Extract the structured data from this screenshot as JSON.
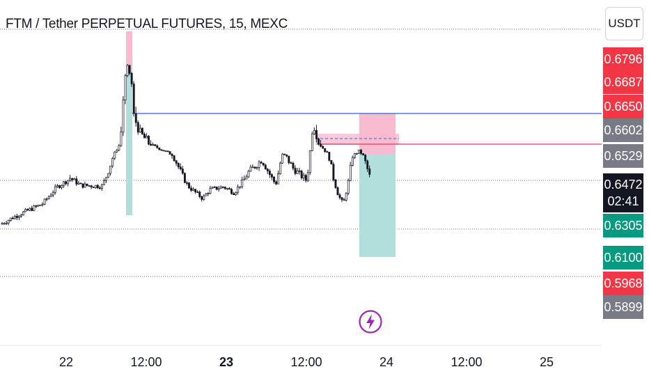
{
  "header": {
    "title": "FTM / Tether PERPETUAL FUTURES, 15, MEXC",
    "currency": "USDT"
  },
  "price_axis": {
    "labels": [
      {
        "text": "0.6796",
        "color": "#f23645"
      },
      {
        "text": "0.6687",
        "color": "#f23645"
      },
      {
        "text": "0.6650",
        "color": "#f23645"
      },
      {
        "text": "0.6602",
        "color": "#787b86"
      },
      {
        "text": "0.6529",
        "color": "#787b86"
      },
      {
        "text": "0.6305",
        "color": "#089981"
      },
      {
        "text": "0.6100",
        "color": "#089981"
      },
      {
        "text": "0.5968",
        "color": "#f23645"
      },
      {
        "text": "0.5899",
        "color": "#787b86"
      }
    ],
    "current": {
      "price": "0.6472",
      "countdown": "02:41",
      "color": "#131722"
    }
  },
  "time_axis": {
    "labels": [
      {
        "text": "22",
        "bold": false
      },
      {
        "text": "12:00",
        "bold": false
      },
      {
        "text": "23",
        "bold": true
      },
      {
        "text": "12:00",
        "bold": false
      },
      {
        "text": "24",
        "bold": false
      },
      {
        "text": "12:00",
        "bold": false
      },
      {
        "text": "25",
        "bold": false
      }
    ]
  },
  "icons": {
    "alert": "lightning-bolt-icon",
    "alert_color": "#9c27b0"
  },
  "chart_data": {
    "type": "candlestick",
    "symbol": "FTM / Tether PERPETUAL FUTURES",
    "interval": "15",
    "exchange": "MEXC",
    "currency": "USDT",
    "x_ticks": [
      "22",
      "12:00",
      "23",
      "12:00",
      "24",
      "12:00",
      "25"
    ],
    "current_price": 0.6472,
    "countdown": "02:41",
    "horizontal_lines": [
      {
        "price": 0.665,
        "color": "#2962ff",
        "style": "solid"
      },
      {
        "price": 0.6602,
        "color": "#f23645",
        "style": "solid"
      },
      {
        "price": 0.6305,
        "color": "#787b86",
        "style": "dotted"
      },
      {
        "price": 0.61,
        "color": "#787b86",
        "style": "dotted"
      },
      {
        "price": 0.6472,
        "color": "#131722",
        "style": "dotted"
      }
    ],
    "positions": [
      {
        "side": "short",
        "entry": 0.6687,
        "stop": 0.6796,
        "target": 0.5968
      },
      {
        "side": "short",
        "entry": 0.6602,
        "stop": 0.665,
        "target": 0.61,
        "entry_alt": 0.6529
      }
    ],
    "grid": false,
    "colors": {
      "up": "#ffffff",
      "down": "#131722",
      "profit_zone": "#b2dfdb",
      "loss_zone": "#f8bbd0"
    }
  }
}
